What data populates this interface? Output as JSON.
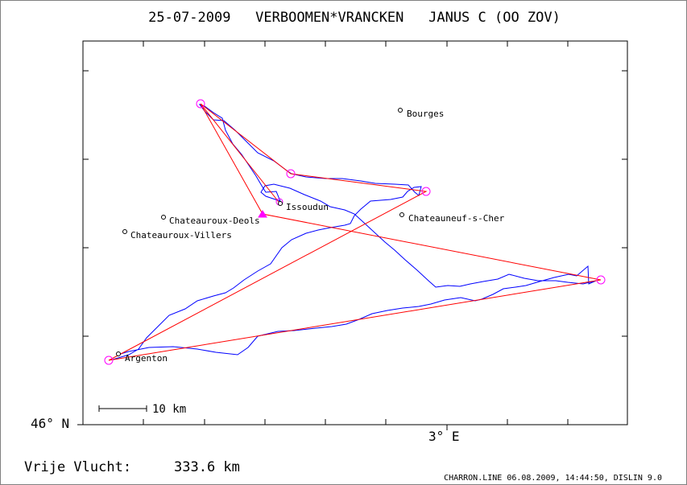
{
  "title": "25-07-2009   VERBOOMEN*VRANCKEN   JANUS C (OO ZOV)",
  "axes": {
    "lat_label": "46° N",
    "lon_label": "3° E"
  },
  "scale_bar_label": "10 km",
  "distance": {
    "label": "Vrije Vlucht:",
    "value": "333.6 km"
  },
  "footer": "CHARRON.LINE 06.08.2009, 14:44:50, DISLIN 9.0",
  "places": [
    {
      "name": "Bourges"
    },
    {
      "name": "Issoudun"
    },
    {
      "name": "Chateauroux-Deols"
    },
    {
      "name": "Chateauneuf-s-Cher"
    },
    {
      "name": "Chateauroux-Villers"
    },
    {
      "name": "Argenton"
    }
  ],
  "colors": {
    "track": "#0000ff",
    "task_line": "#ff0000",
    "turnpoint": "#ff00ff",
    "frame": "#000000"
  }
}
